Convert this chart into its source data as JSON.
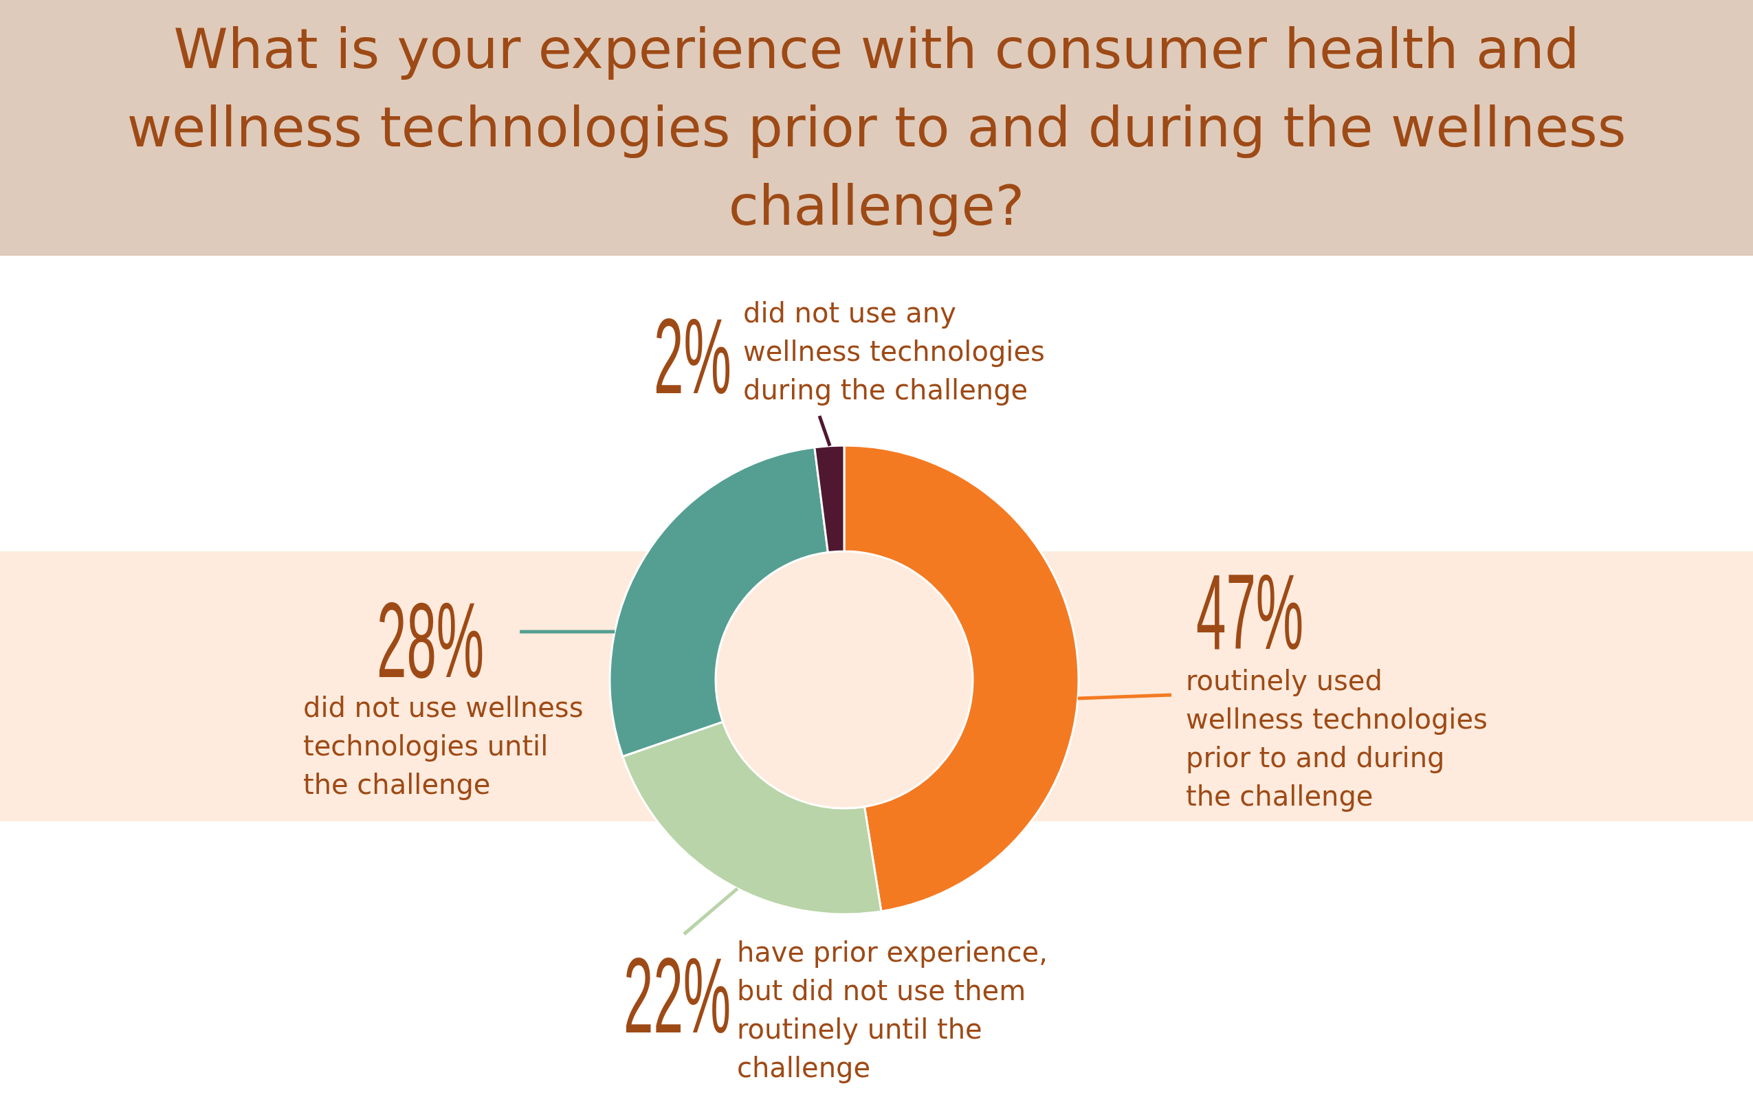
{
  "chart_data": {
    "type": "donut",
    "title": "What is your experience with consumer health and wellness technologies prior to and during the wellness challenge?",
    "categories": [
      "routinely used wellness technologies prior to and during the challenge",
      "have prior experience, but did not use them routinely until the challenge",
      "did not use wellness technologies until the challenge",
      "did not use any wellness technologies during the challenge"
    ],
    "values": [
      47,
      22,
      28,
      2
    ],
    "colors": [
      "#f47a22",
      "#b9d4a8",
      "#549f92",
      "#501830"
    ],
    "value_labels": [
      "47%",
      "22%",
      "28%",
      "2%"
    ]
  }
}
